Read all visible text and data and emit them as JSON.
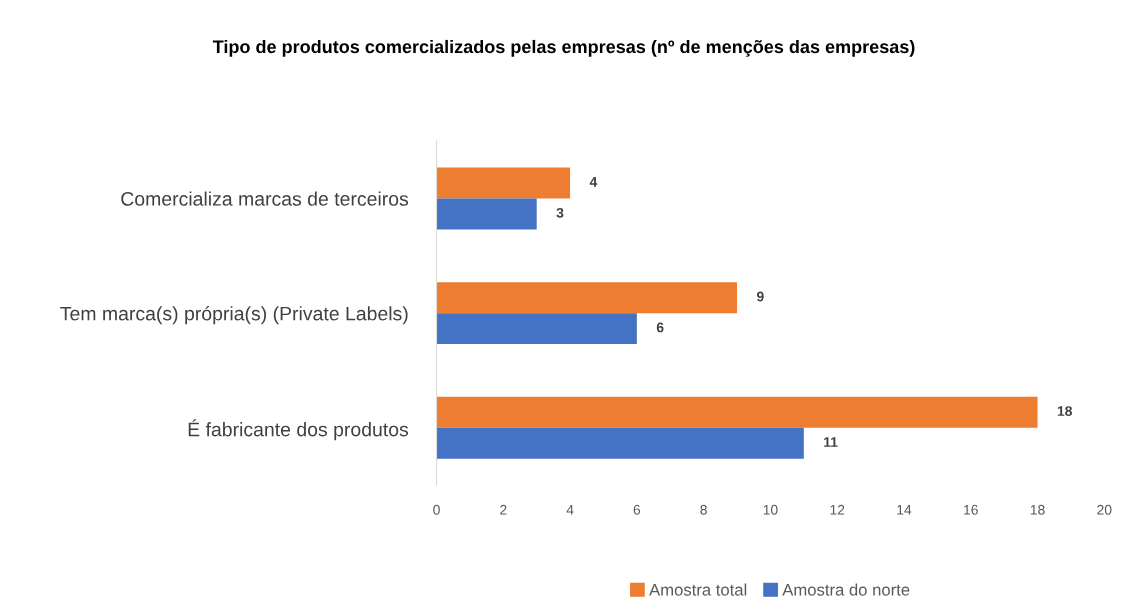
{
  "chart_data": {
    "type": "bar",
    "orientation": "horizontal",
    "title": "Tipo de produtos comercializados pelas empresas (nº de menções das empresas)",
    "categories": [
      "Comercializa marcas de terceiros",
      "Tem marca(s) própria(s) (Private Labels)",
      "É fabricante dos produtos"
    ],
    "series": [
      {
        "name": "Amostra total",
        "color": "#ed7d31",
        "values": [
          4,
          9,
          18
        ]
      },
      {
        "name": "Amostra do norte",
        "color": "#4472c4",
        "values": [
          3,
          6,
          11
        ]
      }
    ],
    "xlim": [
      0,
      20
    ],
    "xticks": [
      0,
      2,
      4,
      6,
      8,
      10,
      12,
      14,
      16,
      18,
      20
    ],
    "grid": false,
    "legend": "bottom",
    "data_labels": true
  }
}
